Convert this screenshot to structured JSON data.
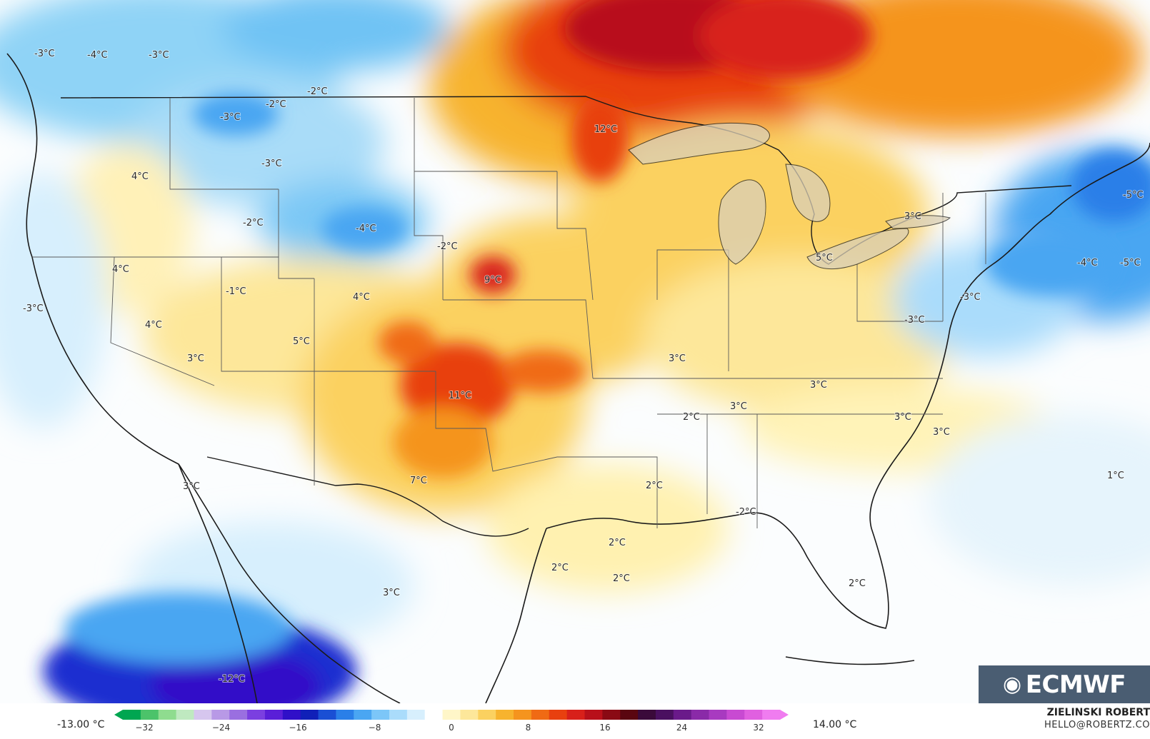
{
  "map": {
    "labels": [
      {
        "id": "pnw-1",
        "text": "-3°C"
      },
      {
        "id": "pnw-2",
        "text": "-4°C"
      },
      {
        "id": "pnw-3",
        "text": "-3°C"
      },
      {
        "id": "mt-1",
        "text": "-2°C"
      },
      {
        "id": "mt-2",
        "text": "-2°C"
      },
      {
        "id": "mt-3",
        "text": "-3°C"
      },
      {
        "id": "wy-1",
        "text": "-3°C"
      },
      {
        "id": "id-1",
        "text": "4°C"
      },
      {
        "id": "id-2",
        "text": "-2°C"
      },
      {
        "id": "wy-2",
        "text": "-4°C"
      },
      {
        "id": "ne-1",
        "text": "-2°C"
      },
      {
        "id": "mn-1",
        "text": "12°C"
      },
      {
        "id": "nv-1",
        "text": "4°C"
      },
      {
        "id": "ut-1",
        "text": "-1°C"
      },
      {
        "id": "ca-1",
        "text": "-3°C"
      },
      {
        "id": "co-1",
        "text": "4°C"
      },
      {
        "id": "ks-1",
        "text": "9°C"
      },
      {
        "id": "nv-2",
        "text": "4°C"
      },
      {
        "id": "ut-2",
        "text": "5°C"
      },
      {
        "id": "nv-3",
        "text": "3°C"
      },
      {
        "id": "tx-1",
        "text": "11°C"
      },
      {
        "id": "tx-2",
        "text": "7°C"
      },
      {
        "id": "il-1",
        "text": "3°C"
      },
      {
        "id": "tn-1",
        "text": "3°C"
      },
      {
        "id": "ar-1",
        "text": "2°C"
      },
      {
        "id": "va-1",
        "text": "3°C"
      },
      {
        "id": "nc-1",
        "text": "3°C"
      },
      {
        "id": "nc-2",
        "text": "3°C"
      },
      {
        "id": "on-1",
        "text": "5°C"
      },
      {
        "id": "ny-1",
        "text": "3°C"
      },
      {
        "id": "ne-us-1",
        "text": "-5°C"
      },
      {
        "id": "ne-us-2",
        "text": "-4°C"
      },
      {
        "id": "ne-us-3",
        "text": "-5°C"
      },
      {
        "id": "nj-1",
        "text": "-3°C"
      },
      {
        "id": "md-1",
        "text": "-3°C"
      },
      {
        "id": "la-1",
        "text": "2°C"
      },
      {
        "id": "ms-1",
        "text": "-2°C"
      },
      {
        "id": "gulf-1",
        "text": "2°C"
      },
      {
        "id": "gulf-2",
        "text": "2°C"
      },
      {
        "id": "gulf-3",
        "text": "2°C"
      },
      {
        "id": "fl-1",
        "text": "2°C"
      },
      {
        "id": "atl-1",
        "text": "1°C"
      },
      {
        "id": "baja-1",
        "text": "3°C"
      },
      {
        "id": "mx-1",
        "text": "3°C"
      },
      {
        "id": "pac-1",
        "text": "-12°C"
      }
    ]
  },
  "logo": {
    "text": "ECMWF",
    "icon": "ecmwf-logo-icon"
  },
  "legend": {
    "min_label": "-13.00 °C",
    "max_label": "14.00 °C",
    "ticks": [
      "−32",
      "−24",
      "−16",
      "−8",
      "0",
      "8",
      "16",
      "24",
      "32"
    ],
    "colors": [
      "#00a651",
      "#4cc36a",
      "#8fdc8f",
      "#bfe9c0",
      "#d6c6ee",
      "#b899e6",
      "#9a6fe0",
      "#7b3fe0",
      "#5a1fd8",
      "#3010c8",
      "#1020b8",
      "#1a4fd4",
      "#2a7fe8",
      "#4aa6f2",
      "#7cc6f8",
      "#aadcfb",
      "#d7effd",
      "#ffffff",
      "#fff6c8",
      "#fde79a",
      "#fbd160",
      "#f7b32e",
      "#f5941e",
      "#f06a14",
      "#e8400f",
      "#d8201a",
      "#b8101a",
      "#8a0a14",
      "#5a0610",
      "#3a0a3a",
      "#4a1060",
      "#6a1a8a",
      "#8a2aa8",
      "#a83ac0",
      "#c84ad2",
      "#e060e0",
      "#f07cf0"
    ],
    "accent": "#e8400f"
  },
  "credit": {
    "name": "ZIELINSKI ROBERT",
    "email": "HELLO@ROBERTZ.CO"
  }
}
